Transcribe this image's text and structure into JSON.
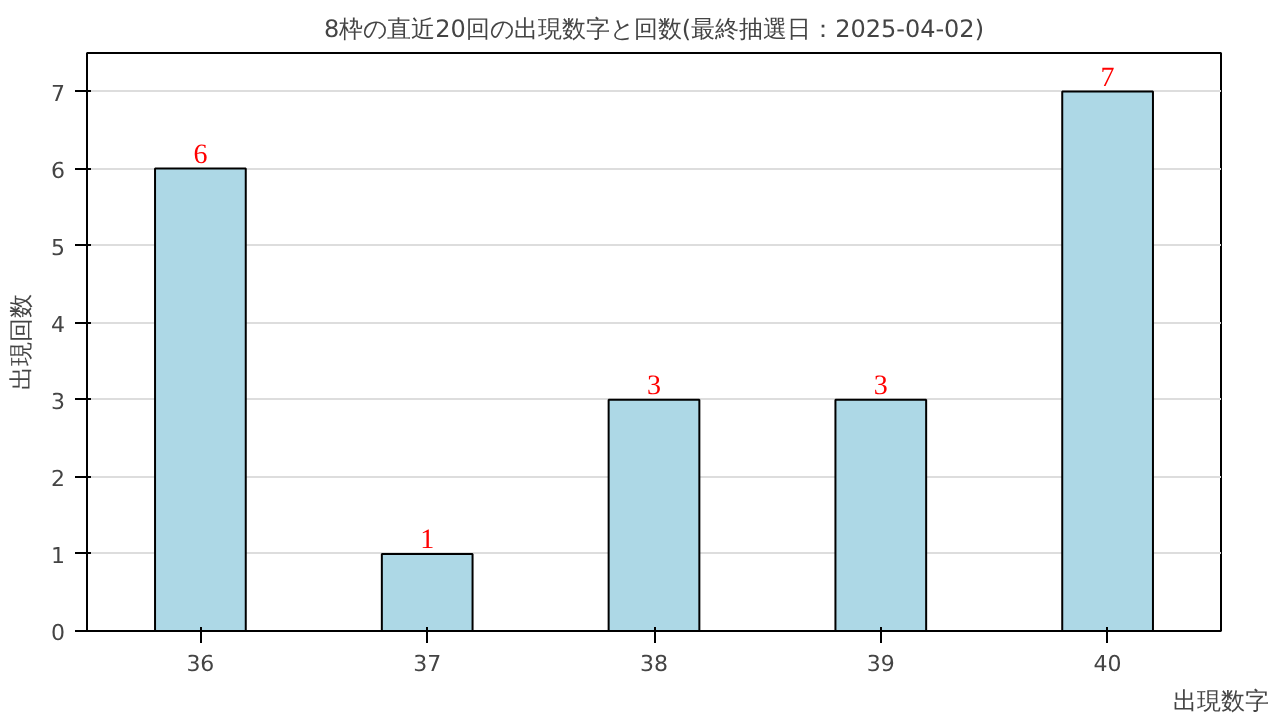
{
  "chart_data": {
    "type": "bar",
    "title": "8枠の直近20回の出現数字と回数(最終抽選日：2025-04-02)",
    "xlabel": "出現数字",
    "ylabel": "出現回数",
    "categories": [
      "36",
      "37",
      "38",
      "39",
      "40"
    ],
    "values": [
      6,
      1,
      3,
      3,
      7
    ],
    "color": "#add8e6",
    "data_labels": true,
    "ylim": [
      0,
      7.5
    ],
    "yticks": [
      0,
      1,
      2,
      3,
      4,
      5,
      6,
      7
    ],
    "grid": "y"
  }
}
